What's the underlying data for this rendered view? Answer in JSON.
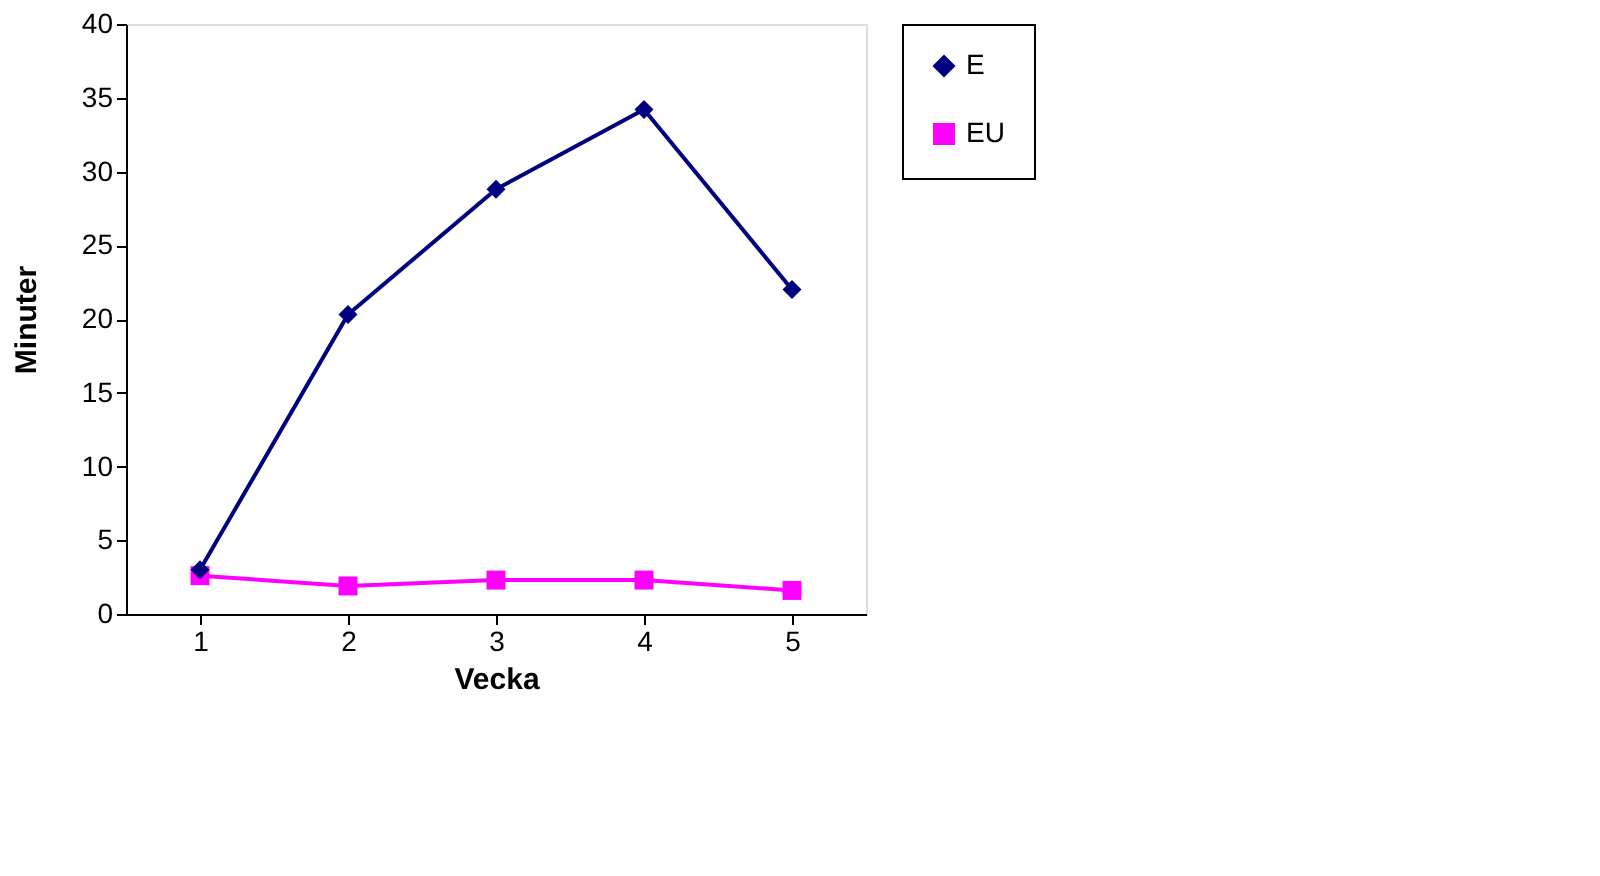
{
  "chart_data": {
    "type": "line",
    "xlabel": "Vecka",
    "ylabel": "Minuter",
    "categories": [
      "1",
      "2",
      "3",
      "4",
      "5"
    ],
    "series": [
      {
        "name": "E",
        "color": "#000080",
        "marker": "diamond",
        "values": [
          3,
          20.3,
          28.8,
          34.2,
          22
        ]
      },
      {
        "name": "EU",
        "color": "#ff00ff",
        "marker": "square",
        "values": [
          2.6,
          1.9,
          2.3,
          2.3,
          1.6
        ]
      }
    ],
    "ylim": [
      0,
      40
    ],
    "yticks": [
      0,
      5,
      10,
      15,
      20,
      25,
      30,
      35,
      40
    ],
    "grid": false,
    "legend": "right"
  }
}
